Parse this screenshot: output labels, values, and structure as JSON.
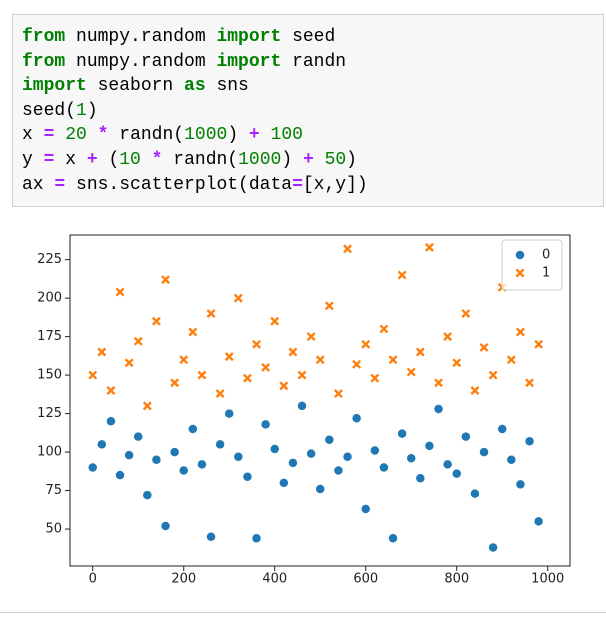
{
  "code": {
    "lines": [
      [
        {
          "text": "from",
          "style": "keyword"
        },
        {
          "text": " numpy.random ",
          "style": "plain"
        },
        {
          "text": "import",
          "style": "keyword"
        },
        {
          "text": " seed",
          "style": "plain"
        }
      ],
      [
        {
          "text": "from",
          "style": "keyword"
        },
        {
          "text": " numpy.random ",
          "style": "plain"
        },
        {
          "text": "import",
          "style": "keyword"
        },
        {
          "text": " randn",
          "style": "plain"
        }
      ],
      [
        {
          "text": "import",
          "style": "keyword"
        },
        {
          "text": " seaborn ",
          "style": "plain"
        },
        {
          "text": "as",
          "style": "keyword"
        },
        {
          "text": " sns",
          "style": "plain"
        }
      ],
      [
        {
          "text": "seed(",
          "style": "plain"
        },
        {
          "text": "1",
          "style": "number"
        },
        {
          "text": ")",
          "style": "plain"
        }
      ],
      [
        {
          "text": "x ",
          "style": "plain"
        },
        {
          "text": "=",
          "style": "operator"
        },
        {
          "text": " ",
          "style": "plain"
        },
        {
          "text": "20",
          "style": "number"
        },
        {
          "text": " ",
          "style": "plain"
        },
        {
          "text": "*",
          "style": "operator"
        },
        {
          "text": " randn(",
          "style": "plain"
        },
        {
          "text": "1000",
          "style": "number"
        },
        {
          "text": ") ",
          "style": "plain"
        },
        {
          "text": "+",
          "style": "operator"
        },
        {
          "text": " ",
          "style": "plain"
        },
        {
          "text": "100",
          "style": "number"
        }
      ],
      [
        {
          "text": "y ",
          "style": "plain"
        },
        {
          "text": "=",
          "style": "operator"
        },
        {
          "text": " x ",
          "style": "plain"
        },
        {
          "text": "+",
          "style": "operator"
        },
        {
          "text": " (",
          "style": "plain"
        },
        {
          "text": "10",
          "style": "number"
        },
        {
          "text": " ",
          "style": "plain"
        },
        {
          "text": "*",
          "style": "operator"
        },
        {
          "text": " randn(",
          "style": "plain"
        },
        {
          "text": "1000",
          "style": "number"
        },
        {
          "text": ") ",
          "style": "plain"
        },
        {
          "text": "+",
          "style": "operator"
        },
        {
          "text": " ",
          "style": "plain"
        },
        {
          "text": "50",
          "style": "number"
        },
        {
          "text": ")",
          "style": "plain"
        }
      ],
      [
        {
          "text": "ax ",
          "style": "plain"
        },
        {
          "text": "=",
          "style": "operator"
        },
        {
          "text": " sns.scatterplot(data",
          "style": "plain"
        },
        {
          "text": "=",
          "style": "operator"
        },
        {
          "text": "[x,y])",
          "style": "plain"
        }
      ]
    ]
  },
  "chart_data": {
    "type": "scatter",
    "x": [
      0,
      20,
      40,
      60,
      80,
      100,
      120,
      140,
      160,
      180,
      200,
      220,
      240,
      260,
      280,
      300,
      320,
      340,
      360,
      380,
      400,
      420,
      440,
      460,
      480,
      500,
      520,
      540,
      560,
      580,
      600,
      620,
      640,
      660,
      680,
      700,
      720,
      740,
      760,
      780,
      800,
      820,
      840,
      860,
      880,
      900,
      920,
      940,
      960,
      980
    ],
    "series": [
      {
        "name": "0",
        "color": "#1f77b4",
        "marker": "circle",
        "values": [
          90,
          105,
          120,
          85,
          98,
          110,
          72,
          95,
          52,
          100,
          88,
          115,
          92,
          45,
          105,
          125,
          97,
          84,
          44,
          118,
          102,
          80,
          93,
          130,
          99,
          76,
          108,
          88,
          97,
          122,
          63,
          101,
          90,
          44,
          112,
          96,
          83,
          104,
          128,
          92,
          86,
          110,
          73,
          100,
          38,
          115,
          95,
          79,
          107,
          55
        ]
      },
      {
        "name": "1",
        "color": "#ff7f0e",
        "marker": "x",
        "values": [
          150,
          165,
          140,
          204,
          158,
          172,
          130,
          185,
          212,
          145,
          160,
          178,
          150,
          190,
          138,
          162,
          200,
          148,
          170,
          155,
          185,
          143,
          165,
          150,
          175,
          160,
          195,
          138,
          232,
          157,
          170,
          148,
          180,
          160,
          215,
          152,
          165,
          233,
          145,
          175,
          158,
          190,
          140,
          168,
          150,
          207,
          160,
          178,
          145,
          170
        ]
      }
    ],
    "xlim": [
      -49.95,
      1048.95
    ],
    "xticks": [
      0,
      200,
      400,
      600,
      800,
      1000
    ],
    "ylim": [
      26,
      241
    ],
    "yticks": [
      50,
      75,
      100,
      125,
      150,
      175,
      200,
      225
    ],
    "legend": "upper right"
  }
}
